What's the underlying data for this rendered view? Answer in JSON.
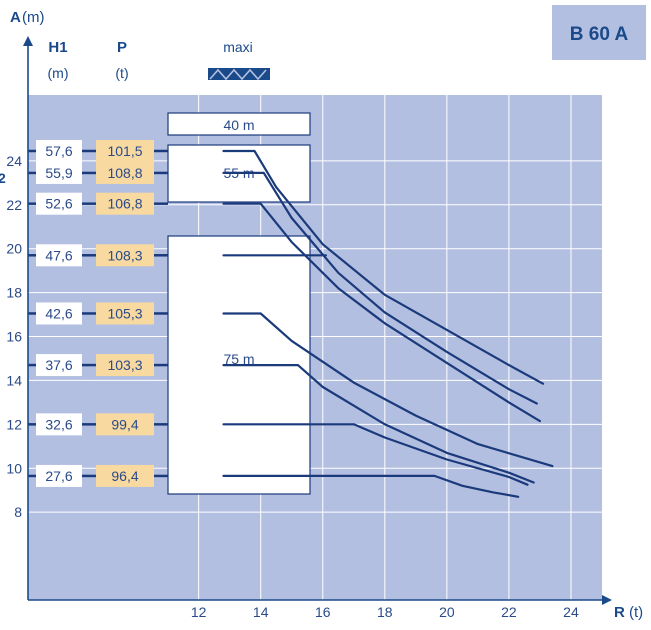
{
  "badge": "B 60 A",
  "header": {
    "a_axis": "A",
    "a_unit": "(m)",
    "h1_label": "H1",
    "h1_unit": "(m)",
    "p_label": "P",
    "p_unit": "(t)",
    "maxi_label": "maxi"
  },
  "jib_boxes": [
    {
      "label": "40 m"
    },
    {
      "label": "55 m"
    },
    {
      "label": "75 m"
    }
  ],
  "chart_data": {
    "type": "line",
    "title": "B 60 A",
    "xlabel": "R (t)",
    "ylabel": "A (m)",
    "x_ticks": [
      12,
      14,
      16,
      18,
      20,
      22,
      24
    ],
    "y_ticks": [
      8,
      10,
      12,
      14,
      16,
      18,
      20,
      22,
      24
    ],
    "xlim": [
      6.5,
      25
    ],
    "ylim": [
      4,
      27
    ],
    "grid": true,
    "side_label_fragment": "2",
    "rows": [
      {
        "h1": "57,6",
        "p": "101,5",
        "y": 24.45
      },
      {
        "h1": "55,9",
        "p": "108,8",
        "y": 23.45
      },
      {
        "h1": "52,6",
        "p": "106,8",
        "y": 22.05
      },
      {
        "h1": "47,6",
        "p": "108,3",
        "y": 19.7
      },
      {
        "h1": "42,6",
        "p": "105,3",
        "y": 17.05
      },
      {
        "h1": "37,6",
        "p": "103,3",
        "y": 14.7
      },
      {
        "h1": "32,6",
        "p": "99,4",
        "y": 12.0
      },
      {
        "h1": "27,6",
        "p": "96,4",
        "y": 9.65
      }
    ],
    "series": [
      {
        "x": [
          12.8,
          13.8,
          14.5,
          16.0,
          18.0,
          20.0,
          22.0,
          23.1
        ],
        "y": [
          24.45,
          24.45,
          22.8,
          20.2,
          17.9,
          16.3,
          14.7,
          13.85
        ]
      },
      {
        "x": [
          12.8,
          14.1,
          15.0,
          16.5,
          18.0,
          20.0,
          22.0,
          22.9
        ],
        "y": [
          23.45,
          23.45,
          21.4,
          18.9,
          17.1,
          15.3,
          13.6,
          12.95
        ]
      },
      {
        "x": [
          12.8,
          14.0,
          15.0,
          16.5,
          18.0,
          20.0,
          22.0,
          23.0
        ],
        "y": [
          22.05,
          22.05,
          20.3,
          18.2,
          16.6,
          14.8,
          13.0,
          12.15
        ]
      },
      {
        "x": [
          12.8,
          16.1
        ],
        "y": [
          19.7,
          19.7
        ]
      },
      {
        "x": [
          12.8,
          14.0,
          15.0,
          17.0,
          19.0,
          21.0,
          23.4
        ],
        "y": [
          17.05,
          17.05,
          15.8,
          13.9,
          12.4,
          11.1,
          10.1
        ]
      },
      {
        "x": [
          12.8,
          15.2,
          16.0,
          18.0,
          20.0,
          22.0,
          22.8
        ],
        "y": [
          14.7,
          14.7,
          13.7,
          12.0,
          10.7,
          9.8,
          9.35
        ]
      },
      {
        "x": [
          12.8,
          17.0,
          18.0,
          20.0,
          22.0,
          22.6
        ],
        "y": [
          12.0,
          12.0,
          11.4,
          10.4,
          9.6,
          9.25
        ]
      },
      {
        "x": [
          12.8,
          19.6,
          20.5,
          21.5,
          22.3
        ],
        "y": [
          9.65,
          9.65,
          9.2,
          8.9,
          8.7
        ]
      }
    ]
  },
  "colors": {
    "plot_bg": "#b3bfe0",
    "axis": "#1a4a8a",
    "curve": "#1a3a7c",
    "row_bar": "#1a3a7c",
    "p_bg": "#f8d9a0",
    "badge_bg": "#b3bfe0",
    "text": "#2a4a8a"
  }
}
